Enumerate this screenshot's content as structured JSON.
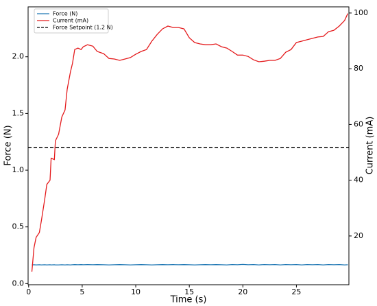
{
  "chart_data": {
    "type": "line",
    "xlabel": "Time (s)",
    "ylabel": "Force (N)",
    "y2label": "Current (mA)",
    "x": [
      0.3,
      0.5,
      0.7,
      1.0,
      1.2,
      1.5,
      1.7,
      2.0,
      2.1,
      2.4,
      2.5,
      2.8,
      3.1,
      3.4,
      3.6,
      3.9,
      4.1,
      4.3,
      4.6,
      4.9,
      5.1,
      5.5,
      6.0,
      6.4,
      7.0,
      7.5,
      8.0,
      8.5,
      9.0,
      9.5,
      10.0,
      10.5,
      11.0,
      11.5,
      12.0,
      12.5,
      13.0,
      13.5,
      14.0,
      14.5,
      15.0,
      15.5,
      16.0,
      16.5,
      17.0,
      17.5,
      18.0,
      18.5,
      19.0,
      19.5,
      20.0,
      20.5,
      21.0,
      21.5,
      22.0,
      22.5,
      23.0,
      23.5,
      24.0,
      24.5,
      25.0,
      25.5,
      26.0,
      26.5,
      27.0,
      27.5,
      28.0,
      28.5,
      29.0,
      29.5,
      29.8
    ],
    "series": [
      {
        "name": "Force (N)",
        "color": "#1f77b4",
        "axis": "y",
        "values": [
          0.165,
          0.166,
          0.165,
          0.166,
          0.165,
          0.166,
          0.165,
          0.166,
          0.165,
          0.166,
          0.165,
          0.165,
          0.166,
          0.165,
          0.166,
          0.165,
          0.166,
          0.167,
          0.166,
          0.167,
          0.166,
          0.167,
          0.166,
          0.167,
          0.166,
          0.165,
          0.166,
          0.167,
          0.166,
          0.165,
          0.166,
          0.167,
          0.166,
          0.165,
          0.166,
          0.167,
          0.166,
          0.167,
          0.166,
          0.167,
          0.166,
          0.165,
          0.166,
          0.167,
          0.166,
          0.167,
          0.166,
          0.165,
          0.168,
          0.166,
          0.169,
          0.166,
          0.168,
          0.165,
          0.168,
          0.166,
          0.168,
          0.165,
          0.168,
          0.166,
          0.168,
          0.165,
          0.168,
          0.166,
          0.168,
          0.165,
          0.168,
          0.166,
          0.168,
          0.165,
          0.166
        ]
      },
      {
        "name": "Current (mA)",
        "color": "#e41a1c",
        "axis": "y2",
        "values": [
          7.2,
          15.8,
          19.5,
          21.2,
          25.7,
          33.1,
          38.5,
          40.0,
          47.9,
          47.4,
          54.1,
          56.5,
          62.7,
          65.2,
          72.6,
          78.8,
          82.0,
          86.9,
          87.4,
          86.9,
          87.9,
          88.6,
          88.1,
          86.2,
          85.4,
          83.7,
          83.5,
          83.0,
          83.5,
          84.0,
          85.2,
          86.2,
          86.9,
          89.9,
          92.3,
          94.3,
          95.3,
          94.8,
          94.8,
          94.3,
          91.1,
          89.4,
          88.9,
          88.6,
          88.6,
          88.9,
          87.9,
          87.4,
          86.2,
          84.9,
          84.9,
          84.4,
          83.2,
          82.5,
          82.7,
          83.0,
          83.0,
          83.7,
          85.9,
          86.9,
          89.4,
          89.9,
          90.4,
          90.9,
          91.4,
          91.6,
          93.3,
          93.8,
          95.3,
          97.3,
          99.8
        ]
      }
    ],
    "setpoint": {
      "name": "Force Setpoint (1.2 N)",
      "value": 1.2,
      "color": "#000000"
    },
    "xlim": [
      -0.05,
      29.9
    ],
    "ylim": [
      -0.01,
      2.44
    ],
    "y2lim": [
      2.5,
      102.2
    ],
    "xticks": [
      0,
      5,
      10,
      15,
      20,
      25
    ],
    "yticks": [
      {
        "value": 0,
        "label": "0.0"
      },
      0.5,
      {
        "value": 1,
        "label": "1.0"
      },
      1.5,
      {
        "value": 2,
        "label": "2.0"
      }
    ],
    "y2ticks": [
      20,
      40,
      60,
      80,
      100
    ],
    "legend": "upper left"
  }
}
